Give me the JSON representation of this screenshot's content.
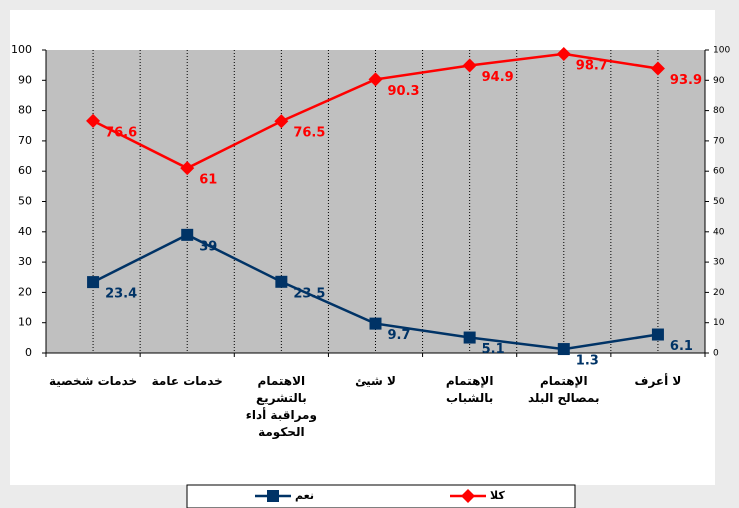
{
  "chart_data": {
    "type": "line",
    "categories": [
      "خدمات شخصية",
      "خدمات عامة",
      "الاهتمام بالتشريع ومراقبة أداء الحكومة",
      "لا شيئ",
      "الإهتمام بالشباب",
      "الإهتمام بمصالح البلد",
      "لا أعرف"
    ],
    "series": [
      {
        "name": "نعم",
        "color": "#003366",
        "marker": "square",
        "values": [
          23.4,
          39,
          23.5,
          9.7,
          5.1,
          1.3,
          6.1
        ]
      },
      {
        "name": "كلا",
        "color": "#ff0000",
        "marker": "diamond",
        "values": [
          76.6,
          61,
          76.5,
          90.3,
          94.9,
          98.7,
          93.9
        ]
      }
    ],
    "ylim": [
      0,
      100
    ],
    "yticks": [
      0,
      10,
      20,
      30,
      40,
      50,
      60,
      70,
      80,
      90,
      100
    ],
    "y2lim": [
      0,
      100
    ],
    "y2ticks": [
      0,
      10,
      20,
      30,
      40,
      50,
      60,
      70,
      80,
      90,
      100
    ],
    "grid": true
  }
}
